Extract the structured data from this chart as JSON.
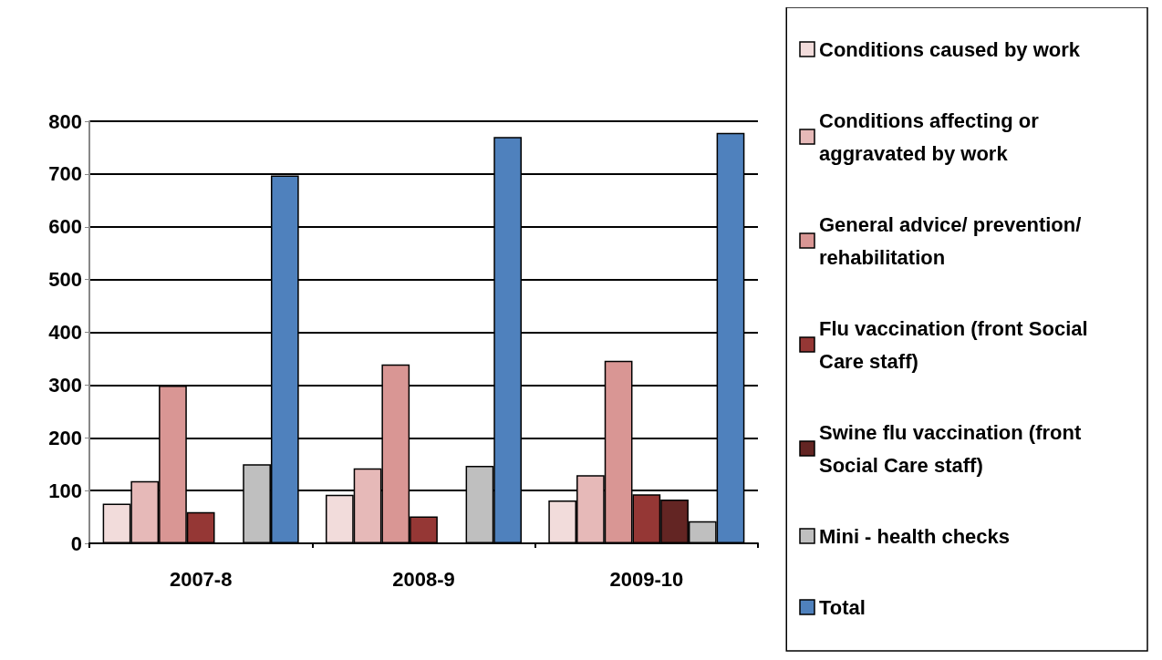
{
  "chart_data": {
    "type": "bar",
    "categories": [
      "2007-8",
      "2008-9",
      "2009-10"
    ],
    "series": [
      {
        "name": "Conditions caused by work",
        "color": "#f2dcdb",
        "values": [
          75,
          92,
          81
        ]
      },
      {
        "name": "Conditions affecting or aggravated by work",
        "color": "#e6b9b8",
        "values": [
          118,
          142,
          129
        ]
      },
      {
        "name": "General advice/ prevention/ rehabilitation",
        "color": "#d99694",
        "values": [
          299,
          339,
          346
        ]
      },
      {
        "name": "Flu vaccination (front Social Care staff)",
        "color": "#953735",
        "values": [
          59,
          51,
          93
        ]
      },
      {
        "name": "Swine flu vaccination (front Social Care staff)",
        "color": "#632523",
        "values": [
          null,
          null,
          83
        ]
      },
      {
        "name": "Mini - health checks",
        "color": "#bfbfbf",
        "values": [
          150,
          147,
          42
        ]
      },
      {
        "name": "Total",
        "color": "#4f81bd",
        "values": [
          697,
          770,
          778
        ]
      }
    ],
    "ylim": [
      0,
      800
    ],
    "yticks": [
      0,
      100,
      200,
      300,
      400,
      500,
      600,
      700,
      800
    ],
    "grid": "y",
    "legend": "right"
  }
}
